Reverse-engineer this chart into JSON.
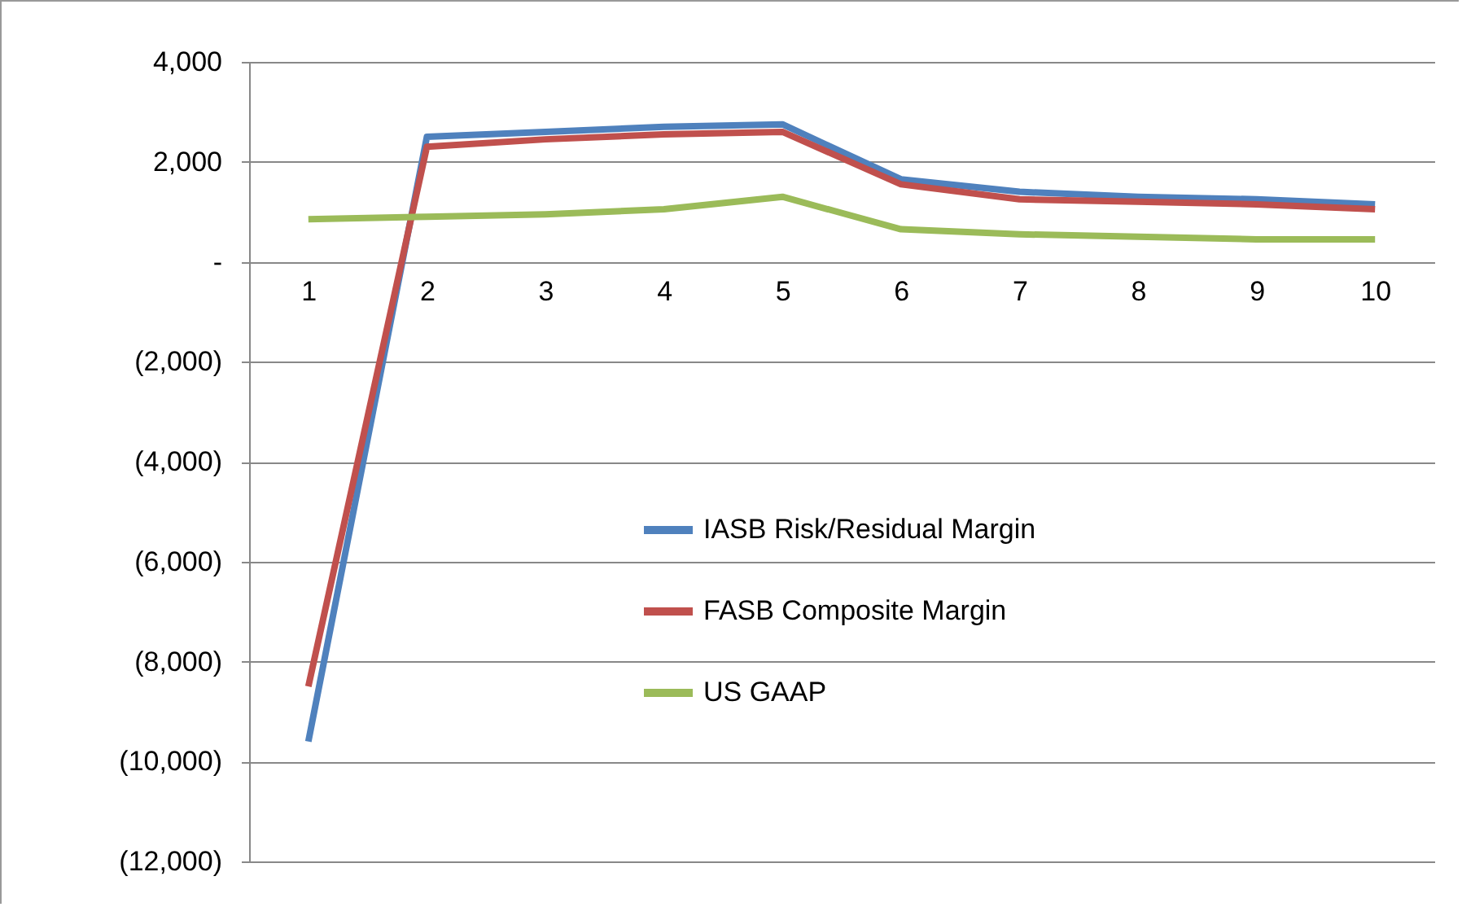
{
  "chart_data": {
    "type": "line",
    "categories": [
      "1",
      "2",
      "3",
      "4",
      "5",
      "6",
      "7",
      "8",
      "9",
      "10"
    ],
    "series": [
      {
        "name": "IASB Risk/Residual  Margin",
        "color": "#4f81bd",
        "values": [
          -9600,
          2500,
          2600,
          2700,
          2750,
          1650,
          1400,
          1300,
          1250,
          1150
        ]
      },
      {
        "name": "FASB Composite  Margin",
        "color": "#c0504d",
        "values": [
          -8500,
          2300,
          2450,
          2550,
          2600,
          1550,
          1250,
          1200,
          1150,
          1050
        ]
      },
      {
        "name": "US GAAP",
        "color": "#9bbb59",
        "values": [
          850,
          900,
          950,
          1050,
          1300,
          650,
          550,
          500,
          450,
          450
        ]
      }
    ],
    "ylim": [
      -12000,
      4000
    ],
    "yticks": [
      {
        "value": 4000,
        "label": "4,000"
      },
      {
        "value": 2000,
        "label": "2,000"
      },
      {
        "value": 0,
        "label": "-"
      },
      {
        "value": -2000,
        "label": "(2,000)"
      },
      {
        "value": -4000,
        "label": "(4,000)"
      },
      {
        "value": -6000,
        "label": "(6,000)"
      },
      {
        "value": -8000,
        "label": "(8,000)"
      },
      {
        "value": -10000,
        "label": "(10,000)"
      },
      {
        "value": -12000,
        "label": "(12,000)"
      }
    ],
    "grid": "y",
    "legend": "bottom",
    "marker": "none",
    "line_style": "solid"
  }
}
